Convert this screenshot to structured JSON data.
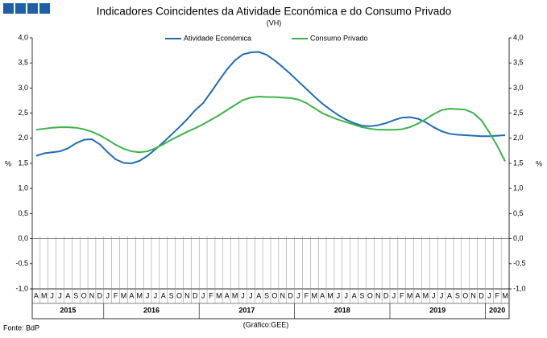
{
  "chart_data": {
    "type": "line",
    "title": "Indicadores Coincidentes da Atividade Económica e do Consumo Privado",
    "subtitle": "(VH)",
    "ylabel": "%",
    "y2label": "%",
    "source": "Fonte: BdP",
    "credit": "(Gráfico:GEE)",
    "categories": [
      "A",
      "M",
      "J",
      "J",
      "A",
      "S",
      "O",
      "N",
      "D",
      "J",
      "F",
      "M",
      "A",
      "M",
      "J",
      "J",
      "A",
      "S",
      "O",
      "N",
      "D",
      "J",
      "F",
      "M",
      "A",
      "M",
      "J",
      "J",
      "A",
      "S",
      "O",
      "N",
      "D",
      "J",
      "F",
      "M",
      "A",
      "M",
      "J",
      "J",
      "A",
      "S",
      "O",
      "N",
      "D",
      "J",
      "F",
      "M",
      "A",
      "M",
      "J",
      "J",
      "A",
      "S",
      "O",
      "N",
      "D",
      "J",
      "F",
      "M"
    ],
    "years": [
      "2015",
      "2016",
      "2017",
      "2018",
      "2019",
      "2020"
    ],
    "series": [
      {
        "name": "Atividade Económica",
        "color": "#1f6db5",
        "values": [
          1.65,
          1.7,
          1.72,
          1.74,
          1.8,
          1.9,
          1.97,
          1.98,
          1.88,
          1.72,
          1.58,
          1.51,
          1.5,
          1.55,
          1.65,
          1.78,
          1.92,
          2.07,
          2.22,
          2.38,
          2.56,
          2.7,
          2.92,
          3.15,
          3.37,
          3.55,
          3.67,
          3.71,
          3.72,
          3.66,
          3.55,
          3.42,
          3.28,
          3.13,
          2.98,
          2.83,
          2.69,
          2.57,
          2.46,
          2.37,
          2.3,
          2.25,
          2.24,
          2.26,
          2.3,
          2.36,
          2.41,
          2.42,
          2.39,
          2.32,
          2.22,
          2.14,
          2.09,
          2.07,
          2.06,
          2.05,
          2.04,
          2.04,
          2.05,
          2.06
        ]
      },
      {
        "name": "Consumo Privado",
        "color": "#3cb44b",
        "values": [
          2.17,
          2.19,
          2.21,
          2.22,
          2.22,
          2.21,
          2.18,
          2.13,
          2.06,
          1.97,
          1.87,
          1.79,
          1.74,
          1.72,
          1.74,
          1.8,
          1.88,
          1.97,
          2.05,
          2.13,
          2.2,
          2.28,
          2.37,
          2.46,
          2.56,
          2.66,
          2.76,
          2.81,
          2.83,
          2.82,
          2.82,
          2.81,
          2.8,
          2.77,
          2.7,
          2.6,
          2.5,
          2.43,
          2.37,
          2.32,
          2.27,
          2.22,
          2.19,
          2.17,
          2.17,
          2.17,
          2.18,
          2.22,
          2.29,
          2.38,
          2.48,
          2.56,
          2.59,
          2.58,
          2.57,
          2.5,
          2.36,
          2.12,
          1.85,
          1.54
        ]
      }
    ],
    "ylim": [
      -1,
      4
    ],
    "yticks": [
      {
        "value": -1,
        "label": "-1,0"
      },
      {
        "value": -0.5,
        "label": "-0,5"
      },
      {
        "value": 0,
        "label": "0,0"
      },
      {
        "value": 0.5,
        "label": "0,5"
      },
      {
        "value": 1,
        "label": "1,0"
      },
      {
        "value": 1.5,
        "label": "1,5"
      },
      {
        "value": 2,
        "label": "2,0"
      },
      {
        "value": 2.5,
        "label": "2,5"
      },
      {
        "value": 3,
        "label": "3,0"
      },
      {
        "value": 3.5,
        "label": "3,5"
      },
      {
        "value": 4,
        "label": "4,0"
      }
    ],
    "y2lim": [
      -1,
      4
    ],
    "y2ticks": [
      {
        "value": -1,
        "label": "-1,0"
      },
      {
        "value": -0.5,
        "label": "-0,5"
      },
      {
        "value": 0,
        "label": "0,0"
      },
      {
        "value": 0.5,
        "label": "0,5"
      },
      {
        "value": 1,
        "label": "1,0"
      },
      {
        "value": 1.5,
        "label": "1,5"
      },
      {
        "value": 2,
        "label": "2,0"
      },
      {
        "value": 2.5,
        "label": "2,5"
      },
      {
        "value": 3,
        "label": "3,0"
      },
      {
        "value": 3.5,
        "label": "3,5"
      },
      {
        "value": 4,
        "label": "4,0"
      }
    ],
    "legend": "top"
  }
}
